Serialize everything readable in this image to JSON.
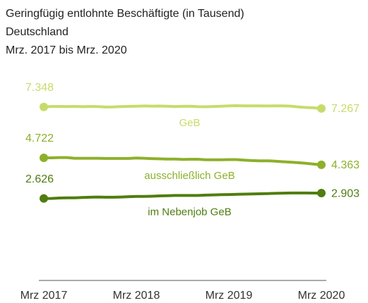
{
  "chart_data": {
    "type": "line",
    "title": "Geringfügig entlohnte Beschäftigte (in Tausend)",
    "subtitle": [
      "Deutschland",
      "Mrz. 2017 bis Mrz. 2020"
    ],
    "categories": [
      "Mrz 2017",
      null,
      null,
      null,
      null,
      null,
      null,
      null,
      null,
      null,
      null,
      null,
      "Mrz 2018",
      null,
      null,
      null,
      null,
      null,
      null,
      null,
      null,
      null,
      null,
      null,
      "Mrz 2019",
      null,
      null,
      null,
      null,
      null,
      null,
      null,
      null,
      null,
      null,
      null,
      "Mrz 2020"
    ],
    "ylim": [
      -1600,
      8500
    ],
    "series": [
      {
        "name": "GeB",
        "color": "#c6dc6a",
        "values": [
          7348,
          7370,
          7375,
          7365,
          7372,
          7360,
          7370,
          7365,
          7340,
          7350,
          7368,
          7372,
          7385,
          7395,
          7390,
          7392,
          7380,
          7365,
          7378,
          7385,
          7360,
          7355,
          7370,
          7385,
          7398,
          7410,
          7400,
          7400,
          7400,
          7395,
          7400,
          7398,
          7390,
          7350,
          7320,
          7300,
          7267
        ],
        "value_labels": [
          "7.348",
          null,
          null,
          null,
          null,
          null,
          null,
          null,
          null,
          null,
          null,
          null,
          null,
          null,
          null,
          null,
          null,
          null,
          null,
          null,
          null,
          null,
          null,
          null,
          null,
          null,
          null,
          null,
          null,
          null,
          null,
          null,
          null,
          null,
          null,
          null,
          "7.267"
        ]
      },
      {
        "name": "ausschließlich GeB",
        "color": "#8db02a",
        "values": [
          4722,
          4720,
          4735,
          4735,
          4700,
          4700,
          4700,
          4700,
          4690,
          4690,
          4690,
          4690,
          4710,
          4700,
          4680,
          4670,
          4660,
          4660,
          4640,
          4650,
          4650,
          4620,
          4620,
          4620,
          4630,
          4630,
          4600,
          4580,
          4570,
          4570,
          4550,
          4520,
          4500,
          4470,
          4440,
          4400,
          4363
        ],
        "value_labels": [
          "4.722",
          null,
          null,
          null,
          null,
          null,
          null,
          null,
          null,
          null,
          null,
          null,
          null,
          null,
          null,
          null,
          null,
          null,
          null,
          null,
          null,
          null,
          null,
          null,
          null,
          null,
          null,
          null,
          null,
          null,
          null,
          null,
          null,
          null,
          null,
          null,
          "4.363"
        ]
      },
      {
        "name": "im Nebenjob GeB",
        "color": "#4f7d0f",
        "values": [
          2626,
          2630,
          2650,
          2660,
          2660,
          2680,
          2690,
          2700,
          2690,
          2690,
          2700,
          2720,
          2730,
          2730,
          2740,
          2760,
          2770,
          2780,
          2780,
          2780,
          2780,
          2800,
          2810,
          2820,
          2830,
          2840,
          2850,
          2860,
          2870,
          2880,
          2890,
          2900,
          2910,
          2910,
          2910,
          2905,
          2903
        ],
        "value_labels": [
          "2.626",
          null,
          null,
          null,
          null,
          null,
          null,
          null,
          null,
          null,
          null,
          null,
          null,
          null,
          null,
          null,
          null,
          null,
          null,
          null,
          null,
          null,
          null,
          null,
          null,
          null,
          null,
          null,
          null,
          null,
          null,
          null,
          null,
          null,
          null,
          null,
          "2.903"
        ]
      }
    ]
  }
}
